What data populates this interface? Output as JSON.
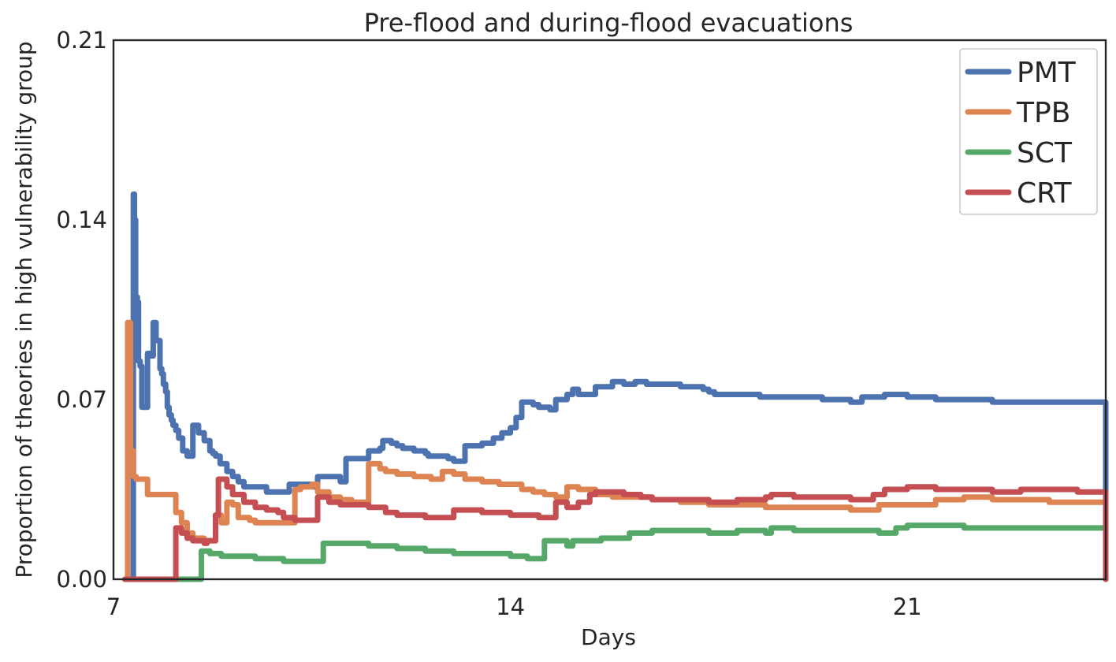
{
  "chart_data": {
    "type": "line",
    "title": "Pre-flood and during-flood evacuations",
    "xlabel": "Days",
    "ylabel": "Proportion of theories in high vulnerability group",
    "xlim": [
      7,
      24.5
    ],
    "ylim": [
      0,
      0.21
    ],
    "xticks": [
      7,
      14,
      21
    ],
    "xtick_labels": [
      "7",
      "14",
      "21"
    ],
    "yticks": [
      0,
      0.07,
      0.14,
      0.21
    ],
    "ytick_labels": [
      "0.00",
      "0.07",
      "0.14",
      "0.21"
    ],
    "grid": false,
    "legend_position": "top-right",
    "series": [
      {
        "name": "PMT",
        "color": "#4c72b0",
        "x": [
          7.35,
          7.35,
          7.37,
          7.39,
          7.42,
          7.44,
          7.47,
          7.5,
          7.52,
          7.55,
          7.6,
          7.65,
          7.7,
          7.75,
          7.82,
          7.85,
          7.88,
          7.92,
          7.95,
          7.98,
          8.02,
          8.05,
          8.1,
          8.15,
          8.22,
          8.3,
          8.4,
          8.5,
          8.6,
          8.7,
          8.75,
          8.8,
          8.88,
          9.0,
          9.1,
          9.2,
          9.3,
          9.5,
          9.7,
          9.9,
          10.1,
          10.3,
          10.5,
          10.6,
          10.8,
          11.0,
          11.1,
          11.3,
          11.5,
          11.7,
          11.75,
          11.9,
          12.0,
          12.1,
          12.3,
          12.5,
          12.55,
          12.7,
          12.9,
          13.0,
          13.2,
          13.5,
          13.7,
          13.8,
          13.85,
          14.0,
          14.05,
          14.1,
          14.2,
          14.3,
          14.4,
          14.5,
          14.6,
          14.7,
          14.8,
          15.0,
          15.1,
          15.2,
          15.4,
          15.5,
          15.6,
          15.8,
          16.0,
          16.2,
          16.4,
          16.5,
          16.6,
          16.8,
          17.0,
          17.2,
          17.4,
          17.5,
          17.6,
          18.0,
          18.4,
          19.0,
          19.5,
          20.0,
          20.2,
          20.6,
          21.0,
          21.5,
          22.0,
          22.5,
          23.0,
          23.5,
          24.0,
          24.4,
          24.5
        ],
        "y": [
          0.0,
          0.15,
          0.14,
          0.11,
          0.108,
          0.085,
          0.083,
          0.067,
          0.067,
          0.067,
          0.088,
          0.087,
          0.1,
          0.093,
          0.082,
          0.08,
          0.076,
          0.073,
          0.067,
          0.064,
          0.062,
          0.06,
          0.058,
          0.055,
          0.05,
          0.048,
          0.06,
          0.057,
          0.054,
          0.05,
          0.049,
          0.048,
          0.045,
          0.042,
          0.04,
          0.038,
          0.036,
          0.036,
          0.034,
          0.034,
          0.037,
          0.037,
          0.036,
          0.04,
          0.04,
          0.038,
          0.047,
          0.047,
          0.05,
          0.051,
          0.054,
          0.053,
          0.052,
          0.051,
          0.05,
          0.049,
          0.048,
          0.048,
          0.047,
          0.046,
          0.052,
          0.053,
          0.055,
          0.055,
          0.057,
          0.059,
          0.059,
          0.063,
          0.069,
          0.069,
          0.068,
          0.067,
          0.067,
          0.066,
          0.07,
          0.072,
          0.074,
          0.072,
          0.072,
          0.075,
          0.075,
          0.077,
          0.076,
          0.077,
          0.076,
          0.076,
          0.076,
          0.076,
          0.075,
          0.075,
          0.074,
          0.073,
          0.072,
          0.072,
          0.071,
          0.071,
          0.07,
          0.069,
          0.071,
          0.072,
          0.071,
          0.07,
          0.07,
          0.069,
          0.069,
          0.069,
          0.069,
          0.069,
          0.0
        ]
      },
      {
        "name": "TPB",
        "color": "#dd8452",
        "x": [
          7.25,
          7.25,
          7.3,
          7.35,
          7.4,
          7.5,
          7.6,
          7.7,
          7.8,
          8.0,
          8.1,
          8.2,
          8.3,
          8.4,
          8.5,
          8.6,
          8.7,
          8.8,
          8.9,
          9.0,
          9.1,
          9.2,
          9.3,
          9.4,
          9.5,
          9.6,
          9.8,
          10.0,
          10.2,
          10.3,
          10.5,
          10.6,
          10.8,
          11.0,
          11.2,
          11.3,
          11.5,
          11.7,
          11.8,
          12.0,
          12.3,
          12.6,
          12.8,
          13.0,
          13.2,
          13.5,
          13.8,
          14.0,
          14.2,
          14.4,
          14.6,
          14.8,
          15.0,
          15.2,
          15.5,
          15.8,
          16.0,
          16.5,
          17.0,
          17.5,
          18.0,
          18.5,
          19.0,
          19.5,
          20.0,
          20.5,
          21.0,
          21.5,
          22.0,
          22.5,
          23.0,
          23.5,
          24.0,
          24.4,
          24.5
        ],
        "y": [
          0.0,
          0.1,
          0.05,
          0.04,
          0.039,
          0.039,
          0.033,
          0.033,
          0.033,
          0.033,
          0.026,
          0.022,
          0.018,
          0.016,
          0.016,
          0.015,
          0.015,
          0.025,
          0.022,
          0.03,
          0.029,
          0.024,
          0.024,
          0.023,
          0.022,
          0.022,
          0.022,
          0.022,
          0.035,
          0.036,
          0.037,
          0.034,
          0.032,
          0.031,
          0.03,
          0.03,
          0.045,
          0.043,
          0.042,
          0.041,
          0.04,
          0.039,
          0.042,
          0.041,
          0.039,
          0.038,
          0.037,
          0.037,
          0.035,
          0.034,
          0.033,
          0.032,
          0.036,
          0.035,
          0.033,
          0.032,
          0.032,
          0.031,
          0.03,
          0.029,
          0.029,
          0.028,
          0.028,
          0.028,
          0.027,
          0.029,
          0.029,
          0.031,
          0.032,
          0.031,
          0.031,
          0.03,
          0.03,
          0.03,
          0.0
        ]
      },
      {
        "name": "SCT",
        "color": "#55a868",
        "x": [
          7.2,
          8.5,
          8.55,
          8.7,
          8.9,
          9.1,
          9.5,
          10.0,
          10.5,
          10.7,
          11.0,
          11.5,
          12.0,
          12.5,
          13.0,
          13.5,
          14.0,
          14.3,
          14.5,
          14.6,
          15.0,
          15.1,
          15.5,
          15.6,
          16.0,
          16.1,
          16.5,
          17.0,
          17.2,
          17.5,
          18.0,
          18.5,
          18.6,
          19.0,
          19.5,
          20.0,
          20.5,
          20.6,
          20.8,
          21.0,
          21.5,
          22.0,
          22.5,
          23.0,
          23.5,
          24.0,
          24.4,
          24.5
        ],
        "y": [
          0.0,
          0.0,
          0.011,
          0.01,
          0.009,
          0.009,
          0.008,
          0.007,
          0.007,
          0.014,
          0.014,
          0.013,
          0.012,
          0.011,
          0.01,
          0.01,
          0.009,
          0.008,
          0.008,
          0.015,
          0.013,
          0.015,
          0.015,
          0.016,
          0.016,
          0.018,
          0.019,
          0.019,
          0.019,
          0.018,
          0.019,
          0.018,
          0.02,
          0.019,
          0.019,
          0.019,
          0.018,
          0.018,
          0.02,
          0.021,
          0.021,
          0.02,
          0.02,
          0.02,
          0.02,
          0.02,
          0.02,
          0.0
        ]
      },
      {
        "name": "CRT",
        "color": "#c44e52",
        "x": [
          7.2,
          8.1,
          8.1,
          8.2,
          8.3,
          8.4,
          8.5,
          8.6,
          8.65,
          8.8,
          8.85,
          9.0,
          9.1,
          9.3,
          9.5,
          9.7,
          9.9,
          10.0,
          10.2,
          10.5,
          10.6,
          10.8,
          11.0,
          11.5,
          11.8,
          12.0,
          12.1,
          12.5,
          13.0,
          13.5,
          14.0,
          14.3,
          14.5,
          14.8,
          15.0,
          15.2,
          15.4,
          15.5,
          15.7,
          16.0,
          16.3,
          16.5,
          17.0,
          17.5,
          18.0,
          18.5,
          18.6,
          19.0,
          19.5,
          20.0,
          20.4,
          20.6,
          21.0,
          21.5,
          22.0,
          22.5,
          23.0,
          23.5,
          24.0,
          24.4,
          24.5
        ],
        "y": [
          0.0,
          0.0,
          0.02,
          0.018,
          0.016,
          0.015,
          0.015,
          0.014,
          0.015,
          0.025,
          0.039,
          0.036,
          0.033,
          0.03,
          0.028,
          0.027,
          0.026,
          0.024,
          0.023,
          0.023,
          0.032,
          0.03,
          0.029,
          0.028,
          0.026,
          0.025,
          0.025,
          0.024,
          0.027,
          0.026,
          0.025,
          0.025,
          0.024,
          0.03,
          0.028,
          0.03,
          0.033,
          0.034,
          0.034,
          0.033,
          0.032,
          0.031,
          0.031,
          0.03,
          0.031,
          0.032,
          0.033,
          0.032,
          0.032,
          0.031,
          0.033,
          0.035,
          0.036,
          0.035,
          0.035,
          0.034,
          0.035,
          0.035,
          0.034,
          0.034,
          0.0
        ]
      }
    ]
  }
}
